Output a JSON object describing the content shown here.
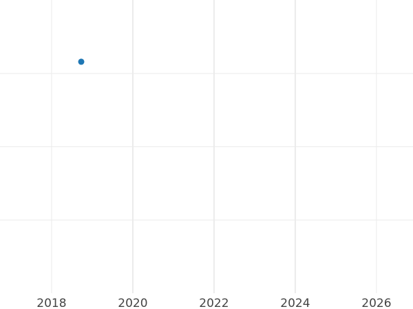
{
  "chart_data": {
    "type": "scatter",
    "title": "",
    "xlabel": "",
    "ylabel": "",
    "xlim": [
      2016.73,
      2026.9
    ],
    "ylim": [
      0,
      4.05
    ],
    "x_ticks": [
      "2018",
      "2020",
      "2022",
      "2024",
      "2026"
    ],
    "x_tick_values": [
      2018,
      2020,
      2022,
      2024,
      2026
    ],
    "y_gridlines": [
      1,
      2,
      3
    ],
    "y_tick_labels_shown": false,
    "grid": true,
    "points": [
      {
        "x": 2018.73,
        "y": 3.16
      }
    ],
    "colors": {
      "point": "#1f77b4",
      "grid": "#ebebeb",
      "tick_text": "#444444"
    }
  }
}
